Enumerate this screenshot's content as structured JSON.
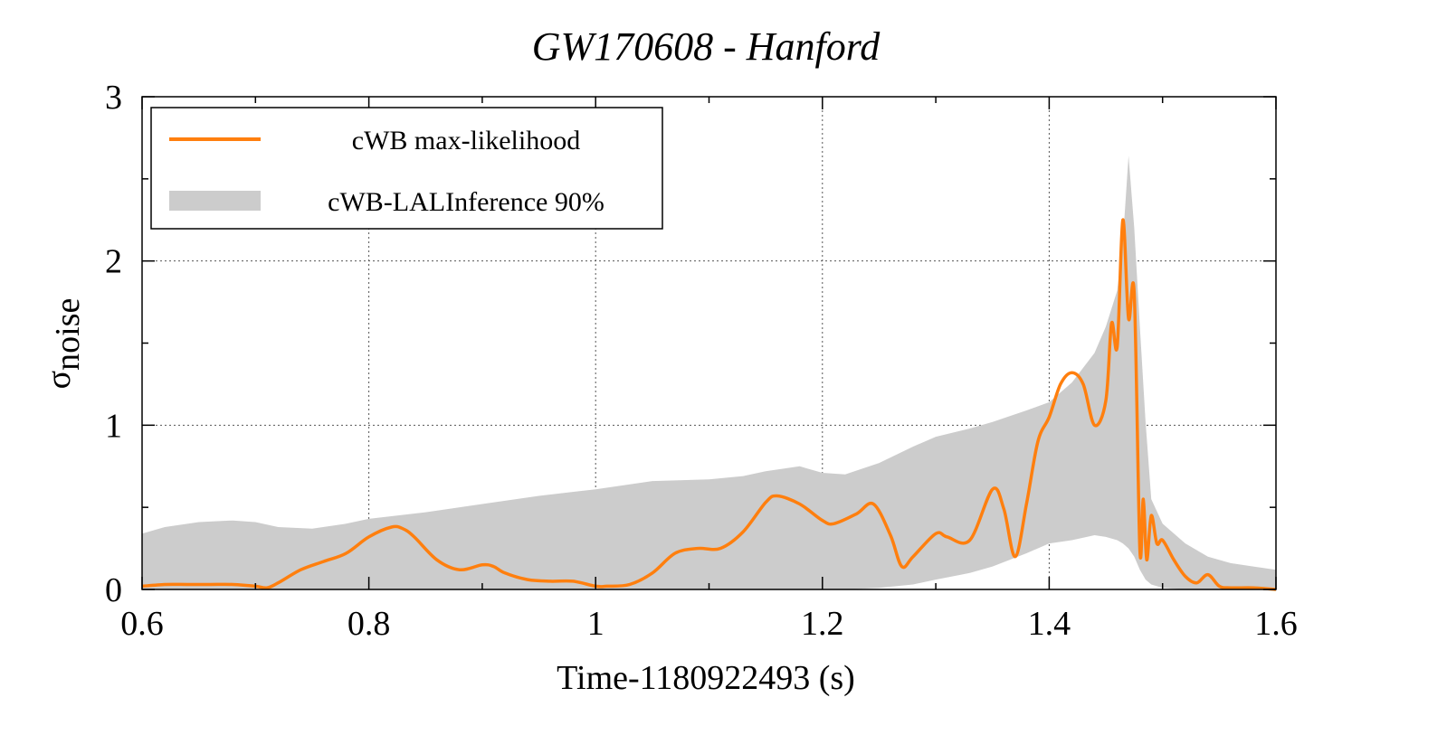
{
  "chart_data": {
    "type": "line",
    "title": "GW170608 - Hanford",
    "xlabel": "Time-1180922493 (s)",
    "ylabel_main": "σ",
    "ylabel_sub": "noise",
    "xlim": [
      0.6,
      1.6
    ],
    "ylim": [
      0,
      3
    ],
    "xticks": [
      0.6,
      0.8,
      1.0,
      1.2,
      1.4,
      1.6
    ],
    "xtick_labels": [
      "0.6",
      "0.8",
      "1",
      "1.2",
      "1.4",
      "1.6"
    ],
    "yticks": [
      0,
      1,
      2,
      3
    ],
    "ytick_labels": [
      "0",
      "1",
      "2",
      "3"
    ],
    "grid": true,
    "legend_position": "top-left",
    "colors": {
      "line": "#ff7f0e",
      "band": "#cccccc"
    },
    "series": [
      {
        "name": "cWB-LALInference 90%",
        "kind": "band",
        "x": [
          0.6,
          0.62,
          0.65,
          0.68,
          0.7,
          0.72,
          0.75,
          0.78,
          0.8,
          0.85,
          0.9,
          0.95,
          1.0,
          1.05,
          1.1,
          1.13,
          1.15,
          1.18,
          1.2,
          1.22,
          1.25,
          1.28,
          1.3,
          1.33,
          1.35,
          1.38,
          1.4,
          1.42,
          1.44,
          1.45,
          1.46,
          1.465,
          1.47,
          1.475,
          1.48,
          1.485,
          1.49,
          1.5,
          1.52,
          1.54,
          1.56,
          1.58,
          1.6
        ],
        "upper": [
          0.34,
          0.38,
          0.41,
          0.42,
          0.41,
          0.38,
          0.37,
          0.4,
          0.43,
          0.47,
          0.52,
          0.57,
          0.61,
          0.66,
          0.67,
          0.69,
          0.72,
          0.75,
          0.71,
          0.7,
          0.77,
          0.87,
          0.93,
          0.98,
          1.02,
          1.09,
          1.14,
          1.26,
          1.44,
          1.6,
          1.82,
          2.12,
          2.64,
          2.2,
          1.6,
          1.02,
          0.55,
          0.4,
          0.28,
          0.2,
          0.16,
          0.14,
          0.12
        ],
        "lower": [
          0.0,
          0.0,
          0.0,
          0.0,
          0.0,
          0.0,
          0.0,
          0.0,
          0.0,
          0.0,
          0.0,
          0.0,
          0.0,
          0.0,
          0.0,
          0.0,
          0.0,
          0.0,
          0.0,
          0.0,
          0.01,
          0.03,
          0.06,
          0.1,
          0.14,
          0.22,
          0.28,
          0.3,
          0.33,
          0.32,
          0.3,
          0.28,
          0.25,
          0.2,
          0.12,
          0.06,
          0.03,
          0.01,
          0.0,
          0.0,
          0.0,
          0.0,
          0.0
        ]
      },
      {
        "name": "cWB max-likelihood",
        "kind": "line",
        "x": [
          0.6,
          0.62,
          0.64,
          0.66,
          0.68,
          0.7,
          0.71,
          0.72,
          0.74,
          0.76,
          0.78,
          0.8,
          0.82,
          0.83,
          0.84,
          0.86,
          0.88,
          0.9,
          0.91,
          0.92,
          0.94,
          0.96,
          0.98,
          1.0,
          1.01,
          1.03,
          1.05,
          1.07,
          1.09,
          1.11,
          1.13,
          1.15,
          1.16,
          1.18,
          1.2,
          1.21,
          1.23,
          1.245,
          1.26,
          1.27,
          1.28,
          1.3,
          1.31,
          1.33,
          1.35,
          1.36,
          1.37,
          1.38,
          1.39,
          1.4,
          1.41,
          1.42,
          1.43,
          1.44,
          1.45,
          1.455,
          1.46,
          1.465,
          1.47,
          1.475,
          1.48,
          1.483,
          1.486,
          1.49,
          1.495,
          1.5,
          1.51,
          1.52,
          1.53,
          1.54,
          1.55,
          1.56,
          1.58,
          1.6
        ],
        "y": [
          0.02,
          0.03,
          0.03,
          0.03,
          0.03,
          0.02,
          0.01,
          0.04,
          0.12,
          0.17,
          0.22,
          0.32,
          0.38,
          0.37,
          0.32,
          0.18,
          0.12,
          0.15,
          0.14,
          0.1,
          0.06,
          0.05,
          0.05,
          0.02,
          0.02,
          0.03,
          0.1,
          0.22,
          0.25,
          0.25,
          0.35,
          0.53,
          0.57,
          0.52,
          0.42,
          0.4,
          0.46,
          0.52,
          0.33,
          0.14,
          0.2,
          0.34,
          0.32,
          0.3,
          0.61,
          0.49,
          0.2,
          0.52,
          0.9,
          1.05,
          1.25,
          1.32,
          1.25,
          1.0,
          1.15,
          1.62,
          1.48,
          2.25,
          1.65,
          1.8,
          0.24,
          0.55,
          0.18,
          0.45,
          0.28,
          0.3,
          0.18,
          0.08,
          0.04,
          0.09,
          0.02,
          0.01,
          0.01,
          0.0
        ]
      }
    ]
  }
}
